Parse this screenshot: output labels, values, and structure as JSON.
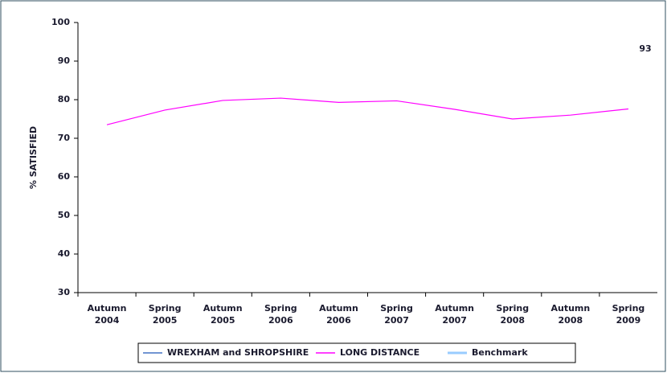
{
  "chart_data": {
    "type": "line",
    "y_label": "% SATISFIED",
    "annotation": "93",
    "categories": [
      "Autumn 2004",
      "Spring 2005",
      "Autumn 2005",
      "Spring 2006",
      "Autumn 2006",
      "Spring 2007",
      "Autumn 2007",
      "Spring 2008",
      "Autumn 2008",
      "Spring 2009"
    ],
    "series": [
      {
        "name": "WREXHAM and SHROPSHIRE",
        "color": "#4472c4",
        "values": [
          null,
          null,
          null,
          null,
          null,
          null,
          null,
          null,
          null,
          null
        ]
      },
      {
        "name": "LONG DISTANCE",
        "color": "#ff00ff",
        "values": [
          73.5,
          77.3,
          79.8,
          80.4,
          79.3,
          79.7,
          77.5,
          75.0,
          76.0,
          77.6
        ]
      },
      {
        "name": "Benchmark",
        "color": "#99ccff",
        "values": [
          null,
          null,
          null,
          null,
          null,
          null,
          null,
          null,
          null,
          null
        ]
      }
    ],
    "ylim": [
      30,
      100
    ],
    "yticks": [
      30,
      40,
      50,
      60,
      70,
      80,
      90,
      100
    ],
    "grid": false
  }
}
